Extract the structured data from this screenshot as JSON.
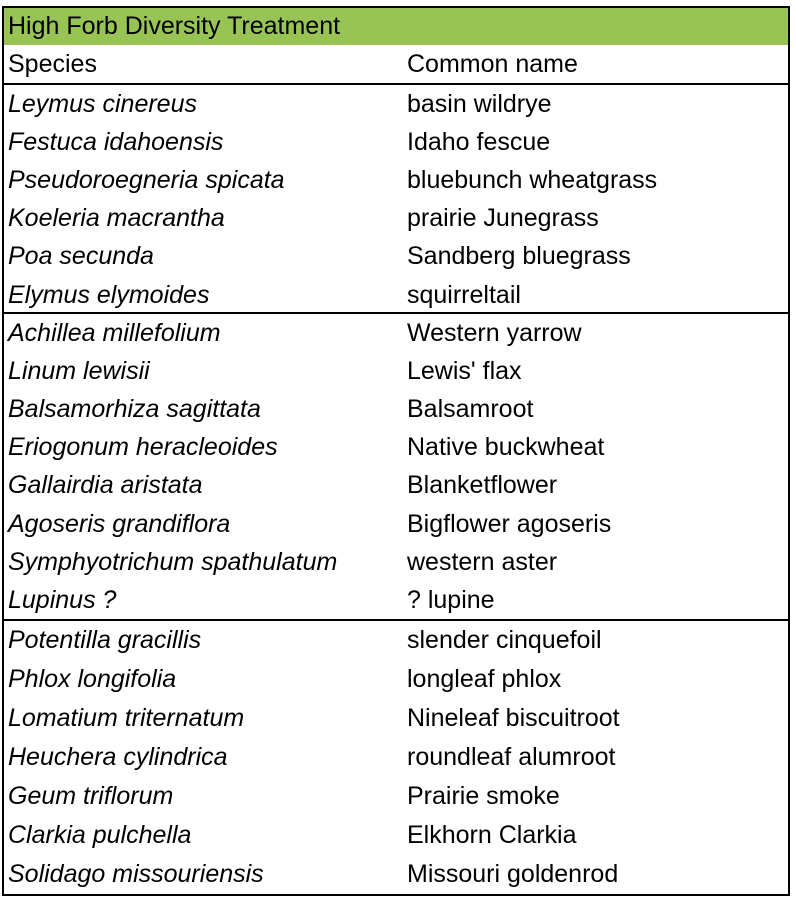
{
  "title": "High Forb Diversity Treatment",
  "columns": {
    "species": "Species",
    "common": "Common name"
  },
  "groups": [
    {
      "rows": [
        {
          "species": "Leymus cinereus",
          "common": "basin wildrye"
        },
        {
          "species": "Festuca idahoensis",
          "common": "Idaho fescue"
        },
        {
          "species": "Pseudoroegneria spicata",
          "common": "bluebunch wheatgrass"
        },
        {
          "species": "Koeleria macrantha",
          "common": "prairie Junegrass"
        },
        {
          "species": "Poa secunda",
          "common": "Sandberg bluegrass"
        },
        {
          "species": "Elymus elymoides",
          "common": "squirreltail"
        }
      ]
    },
    {
      "rows": [
        {
          "species": "Achillea millefolium",
          "common": "Western yarrow"
        },
        {
          "species": "Linum lewisii",
          "common": "Lewis' flax"
        },
        {
          "species": "Balsamorhiza sagittata",
          "common": "Balsamroot"
        },
        {
          "species": "Eriogonum heracleoides",
          "common": "Native buckwheat"
        },
        {
          "species": "Gallairdia aristata",
          "common": "Blanketflower"
        },
        {
          "species": "Agoseris grandiflora",
          "common": "Bigflower agoseris"
        },
        {
          "species": "Symphyotrichum spathulatum",
          "common": "western aster"
        },
        {
          "species": "Lupinus ?",
          "common": "? lupine"
        }
      ]
    },
    {
      "rows": [
        {
          "species": "Potentilla gracillis",
          "common": "slender cinquefoil"
        },
        {
          "species": "Phlox longifolia",
          "common": "longleaf phlox"
        },
        {
          "species": "Lomatium triternatum",
          "common": "Nineleaf biscuitroot"
        },
        {
          "species": "Heuchera cylindrica",
          "common": "roundleaf alumroot"
        },
        {
          "species": "Geum triflorum",
          "common": "Prairie smoke"
        },
        {
          "species": "Clarkia pulchella",
          "common": "Elkhorn Clarkia"
        },
        {
          "species": "Solidago missouriensis",
          "common": "Missouri goldenrod"
        }
      ]
    }
  ],
  "colors": {
    "title_fill": "#98c455",
    "border": "#000000"
  }
}
